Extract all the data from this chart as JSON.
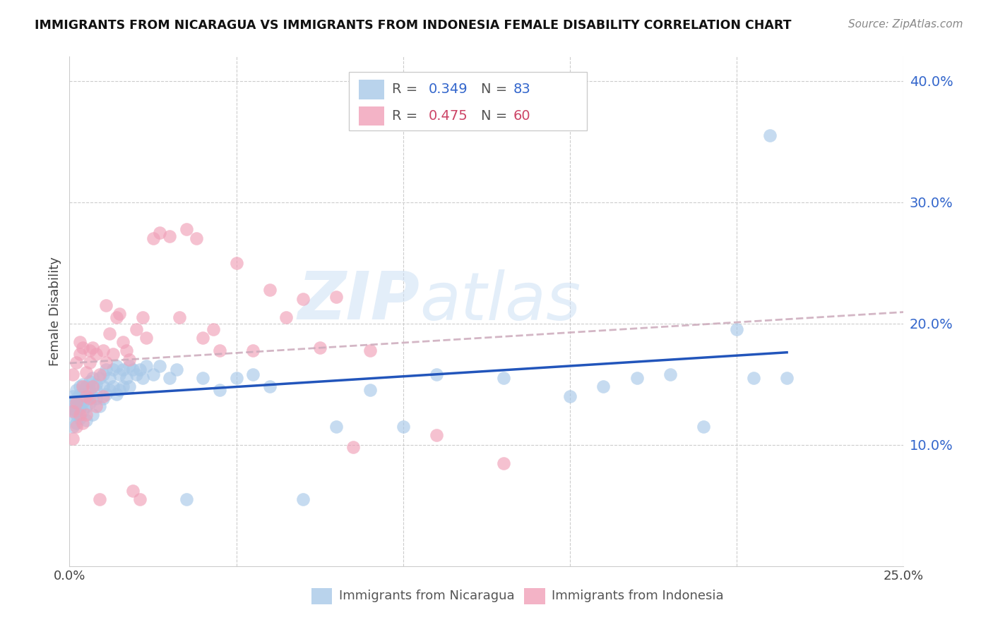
{
  "title": "IMMIGRANTS FROM NICARAGUA VS IMMIGRANTS FROM INDONESIA FEMALE DISABILITY CORRELATION CHART",
  "source": "Source: ZipAtlas.com",
  "ylabel": "Female Disability",
  "xlim": [
    0.0,
    0.25
  ],
  "ylim": [
    0.0,
    0.42
  ],
  "nicaragua_color": "#a8c8e8",
  "indonesia_color": "#f0a0b8",
  "nicaragua_R": 0.349,
  "nicaragua_N": 83,
  "indonesia_R": 0.475,
  "indonesia_N": 60,
  "nicaragua_line_color": "#2255bb",
  "indonesia_line_color": "#ccaabb",
  "nicaragua_x": [
    0.001,
    0.001,
    0.001,
    0.001,
    0.001,
    0.002,
    0.002,
    0.002,
    0.002,
    0.002,
    0.002,
    0.003,
    0.003,
    0.003,
    0.003,
    0.003,
    0.004,
    0.004,
    0.004,
    0.004,
    0.005,
    0.005,
    0.005,
    0.005,
    0.006,
    0.006,
    0.006,
    0.007,
    0.007,
    0.007,
    0.008,
    0.008,
    0.008,
    0.009,
    0.009,
    0.01,
    0.01,
    0.01,
    0.011,
    0.011,
    0.012,
    0.012,
    0.013,
    0.013,
    0.014,
    0.014,
    0.015,
    0.015,
    0.016,
    0.016,
    0.017,
    0.018,
    0.018,
    0.019,
    0.02,
    0.021,
    0.022,
    0.023,
    0.025,
    0.027,
    0.03,
    0.032,
    0.035,
    0.04,
    0.045,
    0.05,
    0.055,
    0.06,
    0.07,
    0.08,
    0.09,
    0.1,
    0.11,
    0.13,
    0.15,
    0.16,
    0.17,
    0.18,
    0.19,
    0.2,
    0.205,
    0.21,
    0.215
  ],
  "nicaragua_y": [
    0.125,
    0.13,
    0.14,
    0.115,
    0.135,
    0.128,
    0.132,
    0.118,
    0.145,
    0.125,
    0.138,
    0.142,
    0.13,
    0.148,
    0.135,
    0.122,
    0.142,
    0.128,
    0.15,
    0.135,
    0.138,
    0.132,
    0.148,
    0.12,
    0.145,
    0.135,
    0.152,
    0.14,
    0.155,
    0.125,
    0.15,
    0.145,
    0.138,
    0.155,
    0.132,
    0.158,
    0.148,
    0.138,
    0.162,
    0.142,
    0.155,
    0.145,
    0.162,
    0.148,
    0.165,
    0.142,
    0.158,
    0.145,
    0.162,
    0.148,
    0.155,
    0.165,
    0.148,
    0.162,
    0.158,
    0.162,
    0.155,
    0.165,
    0.158,
    0.165,
    0.155,
    0.162,
    0.055,
    0.155,
    0.145,
    0.155,
    0.158,
    0.148,
    0.055,
    0.115,
    0.145,
    0.115,
    0.158,
    0.155,
    0.14,
    0.148,
    0.155,
    0.158,
    0.115,
    0.195,
    0.155,
    0.355,
    0.155
  ],
  "indonesia_x": [
    0.001,
    0.001,
    0.001,
    0.002,
    0.002,
    0.002,
    0.003,
    0.003,
    0.003,
    0.004,
    0.004,
    0.004,
    0.005,
    0.005,
    0.005,
    0.006,
    0.006,
    0.006,
    0.007,
    0.007,
    0.008,
    0.008,
    0.009,
    0.009,
    0.01,
    0.01,
    0.011,
    0.011,
    0.012,
    0.013,
    0.014,
    0.015,
    0.016,
    0.017,
    0.018,
    0.019,
    0.02,
    0.021,
    0.022,
    0.023,
    0.025,
    0.027,
    0.03,
    0.033,
    0.035,
    0.038,
    0.04,
    0.043,
    0.045,
    0.05,
    0.055,
    0.06,
    0.065,
    0.07,
    0.075,
    0.08,
    0.085,
    0.09,
    0.11,
    0.13
  ],
  "indonesia_y": [
    0.128,
    0.158,
    0.105,
    0.135,
    0.168,
    0.115,
    0.175,
    0.125,
    0.185,
    0.18,
    0.118,
    0.148,
    0.16,
    0.14,
    0.125,
    0.168,
    0.178,
    0.138,
    0.18,
    0.148,
    0.175,
    0.132,
    0.158,
    0.055,
    0.178,
    0.14,
    0.215,
    0.168,
    0.192,
    0.175,
    0.205,
    0.208,
    0.185,
    0.178,
    0.17,
    0.062,
    0.195,
    0.055,
    0.205,
    0.188,
    0.27,
    0.275,
    0.272,
    0.205,
    0.278,
    0.27,
    0.188,
    0.195,
    0.178,
    0.25,
    0.178,
    0.228,
    0.205,
    0.22,
    0.18,
    0.222,
    0.098,
    0.178,
    0.108,
    0.085
  ]
}
